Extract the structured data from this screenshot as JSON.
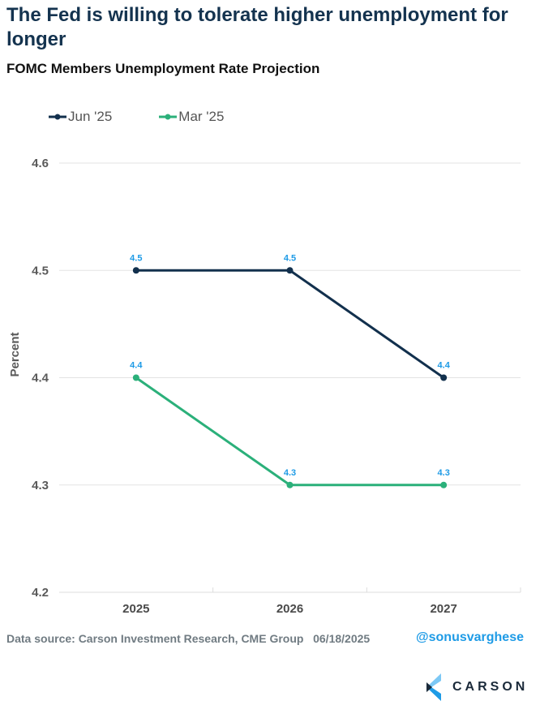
{
  "header": {
    "title": "The Fed is willing to tolerate higher unemployment for longer",
    "subtitle": "FOMC Members Unemployment Rate Projection"
  },
  "colors": {
    "jun": "#12304d",
    "mar": "#2bb07a",
    "data_label": "#1e9be6",
    "grid": "#e3e3e3"
  },
  "chart_data": {
    "type": "line",
    "title": "FOMC Members Unemployment Rate Projection",
    "xlabel": "",
    "ylabel": "Percent",
    "categories": [
      "2025",
      "2026",
      "2027"
    ],
    "ylim": [
      4.2,
      4.6
    ],
    "yticks": [
      "4.2",
      "4.3",
      "4.4",
      "4.5",
      "4.6"
    ],
    "ytick_values": [
      4.2,
      4.3,
      4.4,
      4.5,
      4.6
    ],
    "grid": true,
    "legend_position": "top-left",
    "series": [
      {
        "name": "Jun '25",
        "values": [
          4.5,
          4.5,
          4.4
        ],
        "labels": [
          "4.5",
          "4.5",
          "4.4"
        ]
      },
      {
        "name": "Mar '25",
        "values": [
          4.4,
          4.3,
          4.3
        ],
        "labels": [
          "4.4",
          "4.3",
          "4.3"
        ]
      }
    ]
  },
  "footer": {
    "source": "Data source: Carson Investment Research, CME Group   06/18/2025",
    "handle": "@sonusvarghese",
    "logo_text": "CARSON"
  }
}
